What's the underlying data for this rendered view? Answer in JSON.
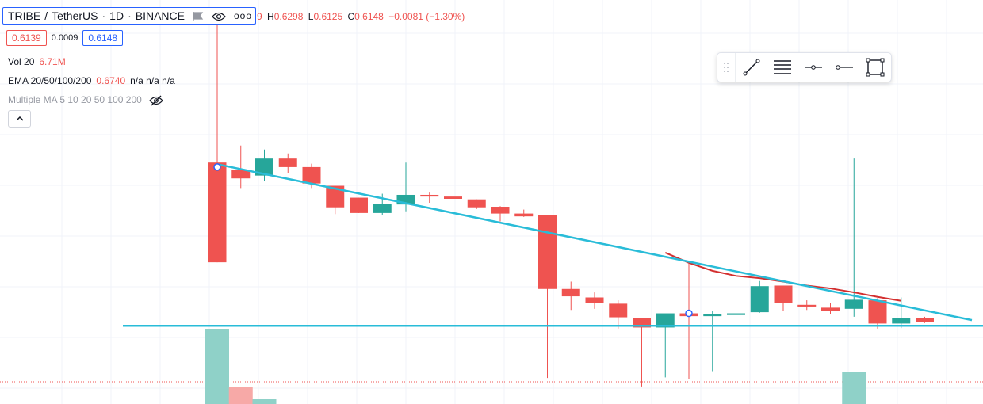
{
  "header": {
    "symbol": "TRIBE",
    "separator": "/",
    "quote": "TetherUS",
    "interval": "1D",
    "exchange": "BINANCE",
    "icons": [
      "flag-icon",
      "eye-icon",
      "more-icon"
    ]
  },
  "ohlc": {
    "open_tail": "9",
    "h_label": "H",
    "h_value": "0.6298",
    "l_label": "L",
    "l_value": "0.6125",
    "c_label": "C",
    "c_value": "0.6148",
    "change": "−0.0081 (−1.30%)"
  },
  "prices": {
    "bid": "0.6139",
    "spread": "0.0009",
    "ask": "0.6148"
  },
  "indicators": {
    "volume": {
      "label": "Vol 20",
      "value": "6.71M"
    },
    "ema": {
      "label": "EMA 20/50/100/200",
      "value": "0.6740",
      "na": "n/a  n/a  n/a"
    },
    "multiple_ma": {
      "label": "Multiple MA 5 10 20 50 100 200"
    }
  },
  "toolbar": {
    "tools": [
      "drag-handle-icon",
      "trend-line-icon",
      "fib-retracement-icon",
      "horizontal-ray-icon",
      "horizontal-line-icon",
      "rectangle-icon"
    ]
  },
  "colors": {
    "up": "#26a69a",
    "down": "#ef5350",
    "up_vol": "#8fd1c8",
    "down_vol": "#f7a9a7",
    "trendline": "#29bcd8",
    "ema": "#d32f2f",
    "grid": "#f0f3fa"
  },
  "chart_data": {
    "type": "candlestick",
    "ylim": [
      0.58,
      1.25
    ],
    "candles": [
      {
        "o": 0.978,
        "h": 1.243,
        "l": 0.802,
        "c": 0.802
      },
      {
        "o": 0.965,
        "h": 1.008,
        "l": 0.933,
        "c": 0.95
      },
      {
        "o": 0.955,
        "h": 1.001,
        "l": 0.946,
        "c": 0.985
      },
      {
        "o": 0.985,
        "h": 0.994,
        "l": 0.96,
        "c": 0.97
      },
      {
        "o": 0.97,
        "h": 0.976,
        "l": 0.933,
        "c": 0.941
      },
      {
        "o": 0.937,
        "h": 0.937,
        "l": 0.887,
        "c": 0.899
      },
      {
        "o": 0.916,
        "h": 0.916,
        "l": 0.889,
        "c": 0.889
      },
      {
        "o": 0.889,
        "h": 0.923,
        "l": 0.885,
        "c": 0.905
      },
      {
        "o": 0.904,
        "h": 0.978,
        "l": 0.892,
        "c": 0.921
      },
      {
        "o": 0.921,
        "h": 0.925,
        "l": 0.907,
        "c": 0.918
      },
      {
        "o": 0.918,
        "h": 0.932,
        "l": 0.912,
        "c": 0.914
      },
      {
        "o": 0.913,
        "h": 0.913,
        "l": 0.896,
        "c": 0.899
      },
      {
        "o": 0.9,
        "h": 0.901,
        "l": 0.874,
        "c": 0.888
      },
      {
        "o": 0.888,
        "h": 0.895,
        "l": 0.882,
        "c": 0.883
      },
      {
        "o": 0.886,
        "h": 0.886,
        "l": 0.598,
        "c": 0.755
      },
      {
        "o": 0.755,
        "h": 0.768,
        "l": 0.718,
        "c": 0.742
      },
      {
        "o": 0.74,
        "h": 0.749,
        "l": 0.72,
        "c": 0.73
      },
      {
        "o": 0.729,
        "h": 0.735,
        "l": 0.685,
        "c": 0.705
      },
      {
        "o": 0.704,
        "h": 0.704,
        "l": 0.583,
        "c": 0.687
      },
      {
        "o": 0.687,
        "h": 0.71,
        "l": 0.599,
        "c": 0.712
      },
      {
        "o": 0.712,
        "h": 0.8,
        "l": 0.596,
        "c": 0.707
      },
      {
        "o": 0.707,
        "h": 0.716,
        "l": 0.61,
        "c": 0.71
      },
      {
        "o": 0.709,
        "h": 0.72,
        "l": 0.615,
        "c": 0.712
      },
      {
        "o": 0.714,
        "h": 0.769,
        "l": 0.713,
        "c": 0.76
      },
      {
        "o": 0.761,
        "h": 0.761,
        "l": 0.716,
        "c": 0.73
      },
      {
        "o": 0.727,
        "h": 0.735,
        "l": 0.718,
        "c": 0.724
      },
      {
        "o": 0.722,
        "h": 0.73,
        "l": 0.71,
        "c": 0.716
      },
      {
        "o": 0.72,
        "h": 0.985,
        "l": 0.706,
        "c": 0.736
      },
      {
        "o": 0.735,
        "h": 0.739,
        "l": 0.685,
        "c": 0.694
      },
      {
        "o": 0.694,
        "h": 0.74,
        "l": 0.686,
        "c": 0.704
      },
      {
        "o": 0.704,
        "h": 0.706,
        "l": 0.695,
        "c": 0.697
      }
    ],
    "volume_bars": [
      {
        "i": 0,
        "v": 0.95,
        "up": true
      },
      {
        "i": 1,
        "v": 0.21,
        "up": false
      },
      {
        "i": 2,
        "v": 0.06,
        "up": true
      },
      {
        "i": 27,
        "v": 0.4,
        "up": true
      }
    ],
    "ema_line": [
      {
        "i": 19,
        "v": 0.819
      },
      {
        "i": 20,
        "v": 0.801
      },
      {
        "i": 21,
        "v": 0.787
      },
      {
        "i": 22,
        "v": 0.778
      },
      {
        "i": 23,
        "v": 0.774
      },
      {
        "i": 24,
        "v": 0.768
      },
      {
        "i": 25,
        "v": 0.761
      },
      {
        "i": 26,
        "v": 0.756
      },
      {
        "i": 27,
        "v": 0.749
      },
      {
        "i": 28,
        "v": 0.741
      },
      {
        "i": 29,
        "v": 0.734
      }
    ],
    "trendlines": [
      {
        "name": "descending",
        "from": {
          "i": 0,
          "v": 0.975
        },
        "to": {
          "i": 32,
          "v": 0.7
        }
      },
      {
        "name": "support",
        "from": {
          "i": -4,
          "v": 0.69
        },
        "to": {
          "i": 33,
          "v": 0.69
        }
      }
    ]
  }
}
